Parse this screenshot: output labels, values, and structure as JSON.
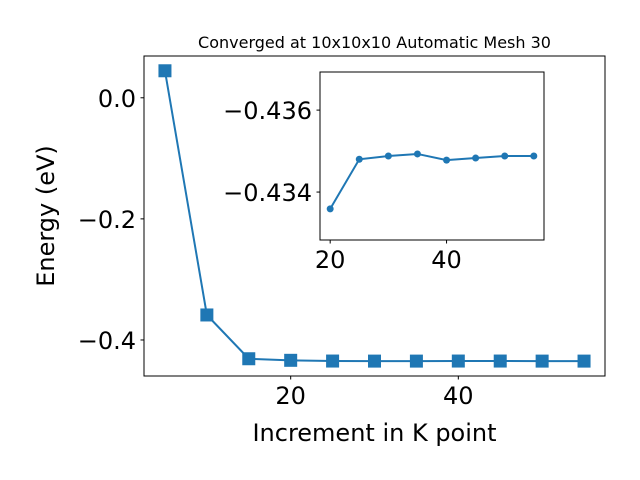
{
  "chart_data": [
    {
      "type": "line",
      "title": "Converged at 10x10x10 Automatic Mesh 30",
      "x_label": "Increment in K point",
      "y_label": "Energy (eV)",
      "x": [
        5,
        10,
        15,
        20,
        25,
        30,
        35,
        40,
        45,
        50,
        55
      ],
      "series": [
        {
          "color": "#1f77b4",
          "marker": "square",
          "values": [
            0.0446,
            -0.3587,
            -0.431,
            -0.4336,
            -0.4348,
            -0.4349,
            -0.4349,
            -0.4348,
            -0.4348,
            -0.4349,
            -0.4349
          ]
        }
      ],
      "xlim": [
        2.5,
        57.5
      ],
      "ylim": [
        -0.4595,
        0.069
      ],
      "xticks": [
        20,
        40
      ],
      "yticks": [
        {
          "value": 0,
          "label": "0.0"
        },
        {
          "value": -0.2,
          "label": "−0.2"
        },
        {
          "value": -0.4,
          "label": "−0.4"
        }
      ]
    },
    {
      "type": "line",
      "x": [
        20,
        25,
        30,
        35,
        40,
        45,
        50,
        55
      ],
      "series": [
        {
          "color": "#1f77b4",
          "marker": "circle",
          "values": [
            -0.43359,
            -0.4348,
            -0.43488,
            -0.43493,
            -0.43478,
            -0.43483,
            -0.43488,
            -0.43488
          ]
        }
      ],
      "xlim": [
        18.25,
        56.75
      ],
      "ylim": [
        -0.43283,
        -0.43693
      ],
      "xticks": [
        20,
        40
      ],
      "yticks": [
        {
          "value": -0.436,
          "label": "−0.436"
        },
        {
          "value": -0.434,
          "label": "−0.434"
        }
      ]
    }
  ]
}
